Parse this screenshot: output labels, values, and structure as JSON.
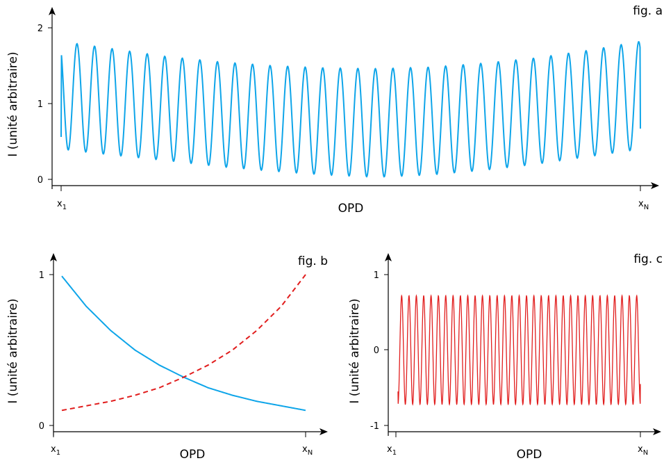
{
  "chart_data": [
    {
      "panel": "fig. a",
      "type": "line",
      "label": "fig. a",
      "ylabel": "I (unité arbitraire)",
      "xlabel": "OPD",
      "x_ticks": [
        {
          "main": "x",
          "sub": "1"
        },
        {
          "main": "x",
          "sub": "N"
        }
      ],
      "y_ticks": [
        "0",
        "1",
        "2"
      ],
      "xlim": [
        0,
        1
      ],
      "ylim": [
        0,
        2
      ],
      "series": [
        {
          "color": "#0ea5e9",
          "style": "solid",
          "cycles": 33,
          "envelope_upper": [
            1.82,
            1.72,
            1.62,
            1.55,
            1.5,
            1.47,
            1.46,
            1.48,
            1.53,
            1.6,
            1.7,
            1.82
          ],
          "envelope_lower": [
            0.4,
            0.32,
            0.25,
            0.17,
            0.11,
            0.06,
            0.03,
            0.06,
            0.12,
            0.2,
            0.3,
            0.4
          ],
          "start_value": 0.56,
          "end_value": 0.67
        }
      ]
    },
    {
      "panel": "fig. b",
      "type": "line",
      "label": "fig. b",
      "ylabel": "I (unité arbitraire)",
      "xlabel": "OPD",
      "x_ticks": [
        {
          "main": "x",
          "sub": "1"
        },
        {
          "main": "x",
          "sub": "N"
        }
      ],
      "y_ticks": [
        "0",
        "1"
      ],
      "xlim": [
        0,
        1
      ],
      "ylim": [
        0,
        1
      ],
      "series": [
        {
          "color": "#0ea5e9",
          "style": "solid",
          "x": [
            0,
            0.1,
            0.2,
            0.3,
            0.4,
            0.5,
            0.6,
            0.7,
            0.8,
            0.9,
            1.0
          ],
          "y": [
            0.99,
            0.79,
            0.63,
            0.5,
            0.4,
            0.32,
            0.25,
            0.2,
            0.16,
            0.13,
            0.1
          ]
        },
        {
          "color": "#e11d1d",
          "style": "dashed",
          "x": [
            0,
            0.1,
            0.2,
            0.3,
            0.4,
            0.5,
            0.6,
            0.7,
            0.8,
            0.9,
            1.0
          ],
          "y": [
            0.1,
            0.13,
            0.16,
            0.2,
            0.25,
            0.32,
            0.4,
            0.5,
            0.63,
            0.79,
            1.0
          ]
        }
      ]
    },
    {
      "panel": "fig. c",
      "type": "line",
      "label": "fig. c",
      "ylabel": "I (unité arbitraire)",
      "xlabel": "OPD",
      "x_ticks": [
        {
          "main": "x",
          "sub": "1"
        },
        {
          "main": "x",
          "sub": "N"
        }
      ],
      "y_ticks": [
        "-1",
        "0",
        "1"
      ],
      "xlim": [
        0,
        1
      ],
      "ylim": [
        -1,
        1
      ],
      "series": [
        {
          "color": "#e11d1d",
          "style": "solid",
          "cycles": 33,
          "amplitude": 0.72,
          "start_value": -0.55,
          "end_value": -0.45
        }
      ]
    }
  ]
}
